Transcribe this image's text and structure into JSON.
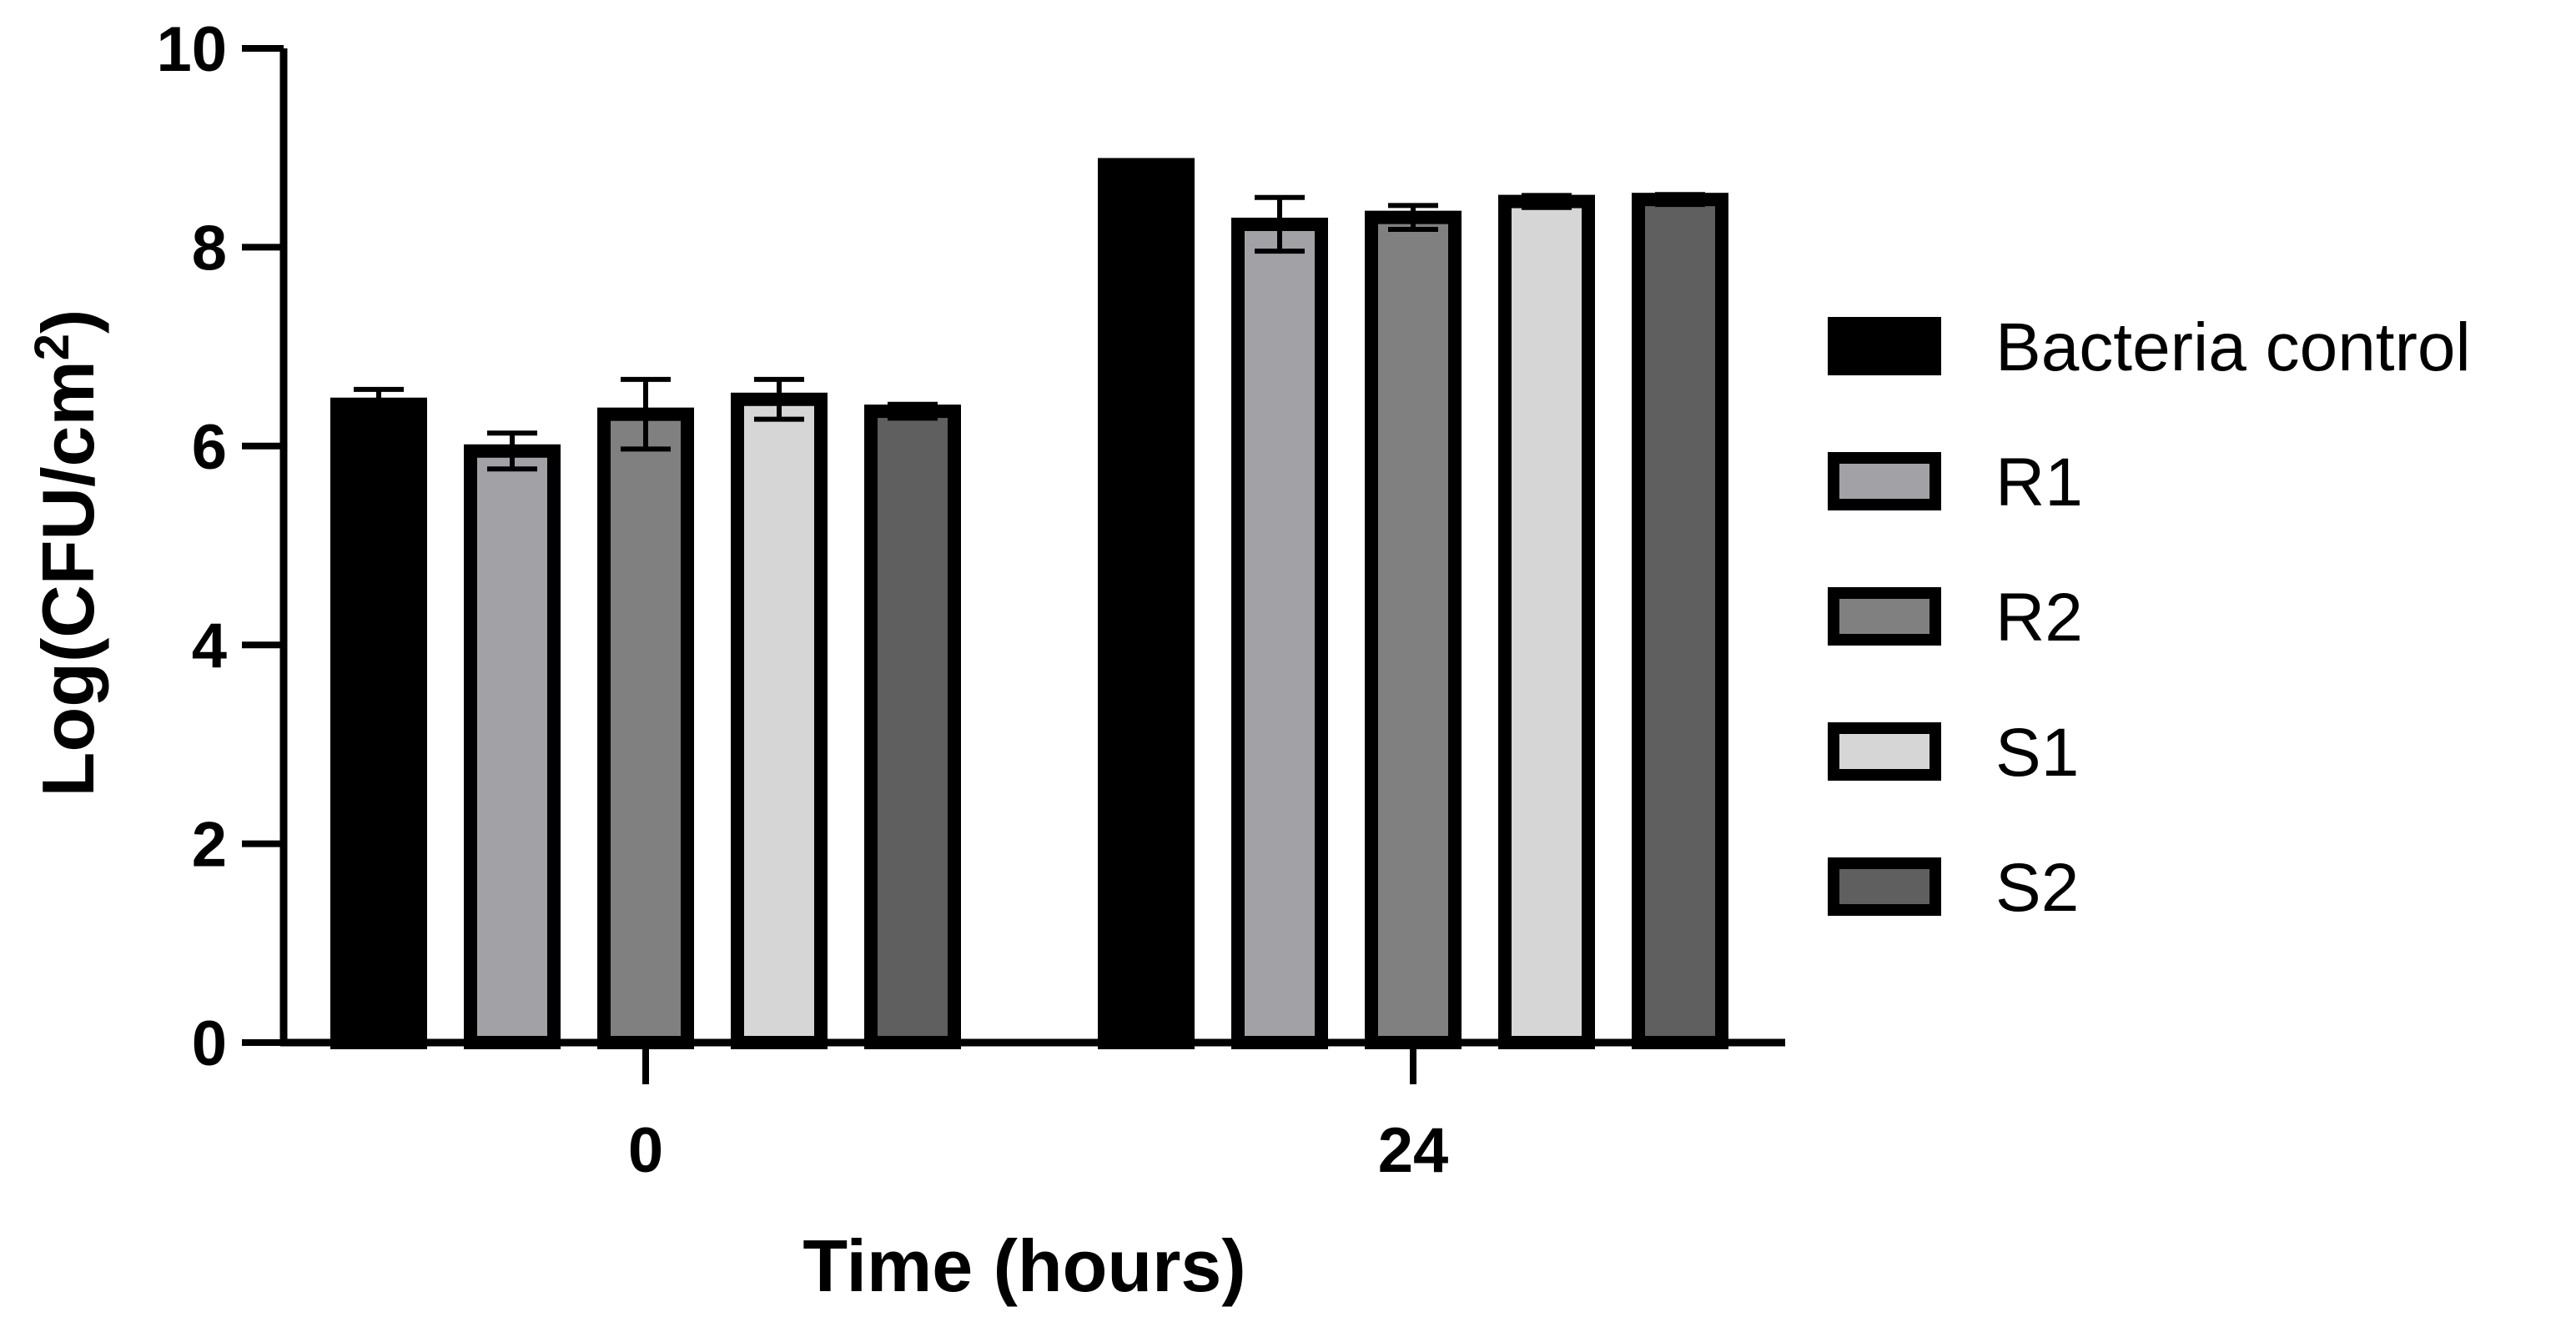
{
  "chart_data": {
    "type": "bar",
    "title": "",
    "xlabel": "Time (hours)",
    "ylabel": {
      "text": "Log(CFU/cm",
      "superscript": "2",
      "suffix": ")"
    },
    "categories": [
      "0",
      "24"
    ],
    "ylim": [
      0,
      10
    ],
    "yticks": [
      "0",
      "2",
      "4",
      "6",
      "8",
      "10"
    ],
    "grid": false,
    "legend_position": "right",
    "series": [
      {
        "name": "Bacteria control",
        "color": "#000000",
        "values": [
          6.42,
          8.83
        ],
        "errors": [
          0.15,
          0.03
        ]
      },
      {
        "name": "R1",
        "color": "#a2a2a6",
        "values": [
          5.95,
          8.23
        ],
        "errors": [
          0.18,
          0.27
        ]
      },
      {
        "name": "R2",
        "color": "#808080",
        "values": [
          6.32,
          8.3
        ],
        "errors": [
          0.35,
          0.12
        ]
      },
      {
        "name": "S1",
        "color": "#d6d6d6",
        "values": [
          6.47,
          8.46
        ],
        "errors": [
          0.2,
          0.06
        ]
      },
      {
        "name": "S2",
        "color": "#5f5f5f",
        "values": [
          6.35,
          8.48
        ],
        "errors": [
          0.07,
          0.05
        ]
      }
    ]
  }
}
